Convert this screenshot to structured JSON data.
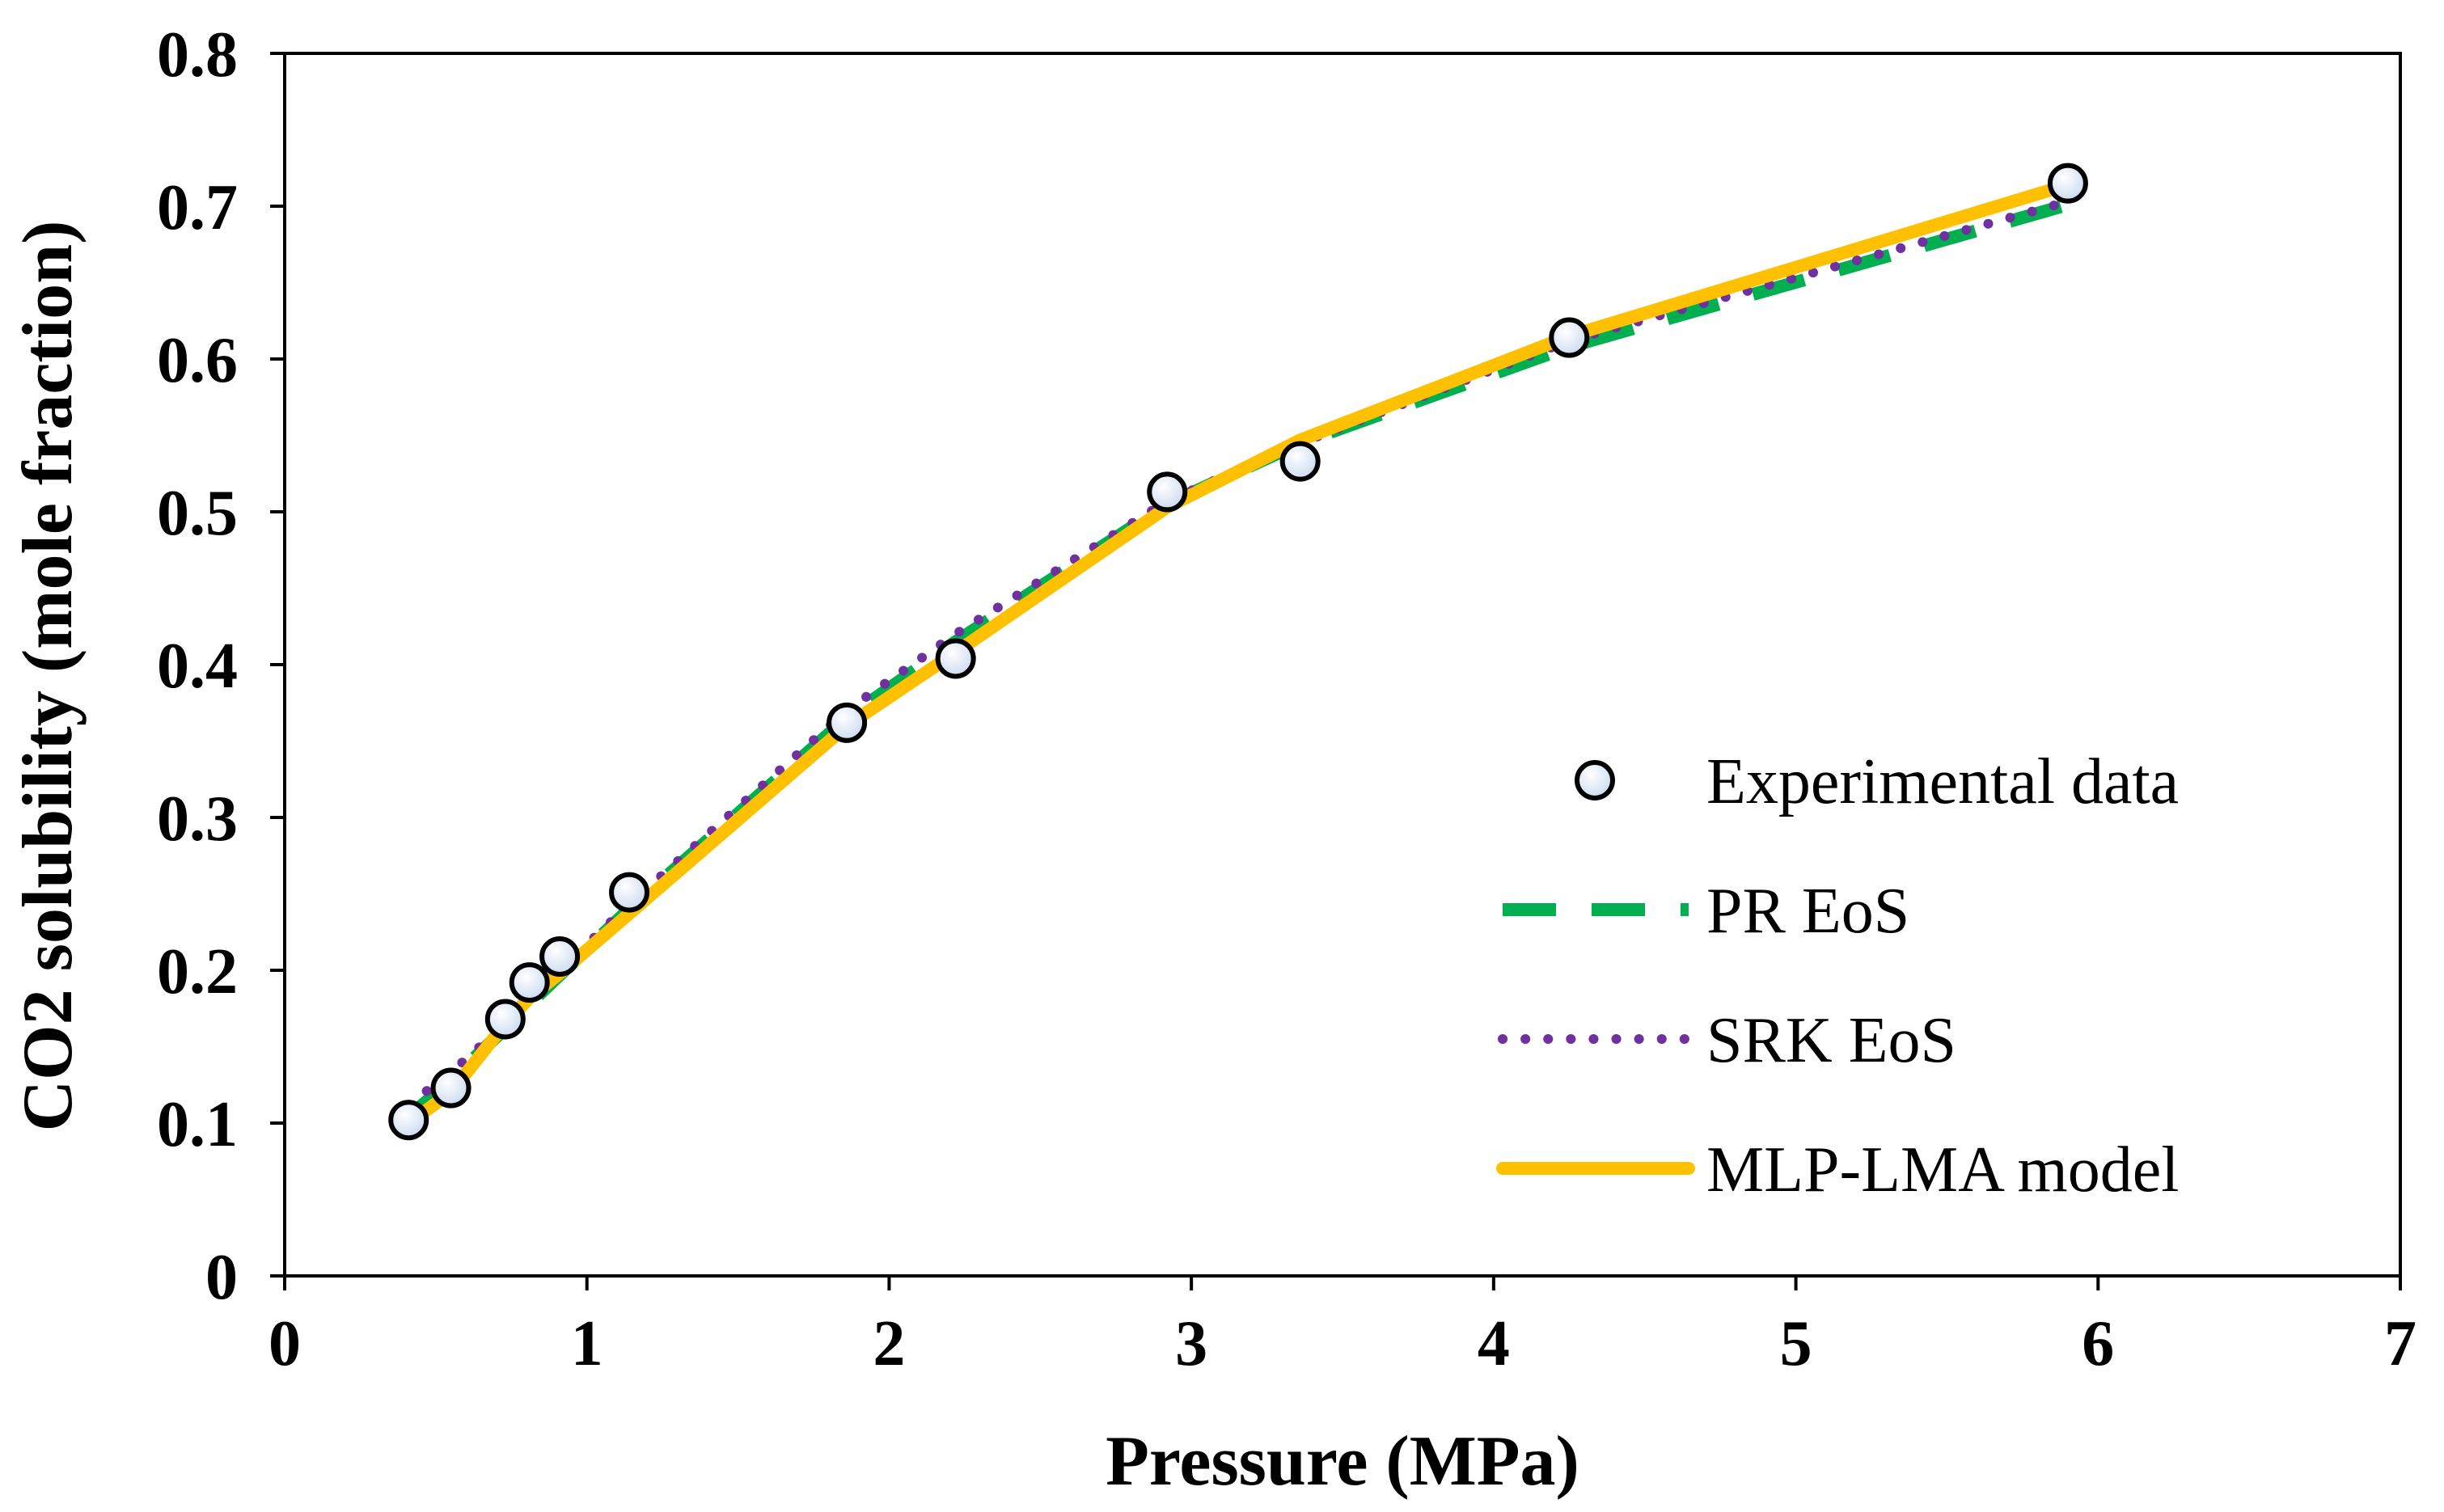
{
  "chart_data": {
    "type": "line",
    "title": "",
    "xlabel": "Pressure (MPa)",
    "ylabel": "CO2 solubility (mole fraction)",
    "xlim": [
      0,
      7
    ],
    "ylim": [
      0,
      0.8
    ],
    "x_ticks": [
      0,
      1,
      2,
      3,
      4,
      5,
      6,
      7
    ],
    "y_ticks": [
      0,
      0.1,
      0.2,
      0.3,
      0.4,
      0.5,
      0.6,
      0.7,
      0.8
    ],
    "x_tick_labels": [
      "0",
      "1",
      "2",
      "3",
      "4",
      "5",
      "6",
      "7"
    ],
    "y_tick_labels": [
      "0",
      "0.1",
      "0.2",
      "0.3",
      "0.4",
      "0.5",
      "0.6",
      "0.7",
      "0.8"
    ],
    "grid": false,
    "legend_position": "bottom-right",
    "series": [
      {
        "name": "Experimental data",
        "kind": "scatter",
        "color": "#000000",
        "fill": "#c9d9f0",
        "x": [
          0.41,
          0.55,
          0.73,
          0.81,
          0.91,
          1.14,
          1.86,
          2.22,
          2.92,
          3.36,
          4.25,
          5.9
        ],
        "y": [
          0.102,
          0.123,
          0.168,
          0.192,
          0.209,
          0.251,
          0.362,
          0.404,
          0.513,
          0.533,
          0.614,
          0.715
        ]
      },
      {
        "name": "PR EoS",
        "kind": "line",
        "style": "dashed",
        "color": "#00b050",
        "x": [
          0.41,
          0.55,
          0.73,
          0.81,
          0.91,
          1.14,
          1.86,
          2.22,
          2.92,
          3.36,
          4.25,
          5.9
        ],
        "y": [
          0.104,
          0.128,
          0.162,
          0.178,
          0.197,
          0.24,
          0.365,
          0.415,
          0.505,
          0.545,
          0.608,
          0.701
        ]
      },
      {
        "name": "SRK EoS",
        "kind": "line",
        "style": "dotted",
        "color": "#7030a0",
        "x": [
          0.41,
          0.55,
          0.73,
          0.81,
          0.91,
          1.14,
          1.86,
          2.22,
          2.92,
          3.36,
          4.25,
          5.9
        ],
        "y": [
          0.112,
          0.133,
          0.165,
          0.182,
          0.2,
          0.243,
          0.37,
          0.42,
          0.507,
          0.545,
          0.612,
          0.703
        ]
      },
      {
        "name": "MLP-LMA model",
        "kind": "line",
        "style": "solid",
        "color": "#ffc000",
        "x": [
          0.41,
          0.55,
          0.73,
          0.81,
          0.91,
          1.14,
          1.86,
          2.22,
          2.92,
          3.36,
          4.25,
          5.9
        ],
        "y": [
          0.1,
          0.12,
          0.165,
          0.182,
          0.198,
          0.237,
          0.36,
          0.408,
          0.503,
          0.547,
          0.615,
          0.714
        ]
      }
    ]
  }
}
